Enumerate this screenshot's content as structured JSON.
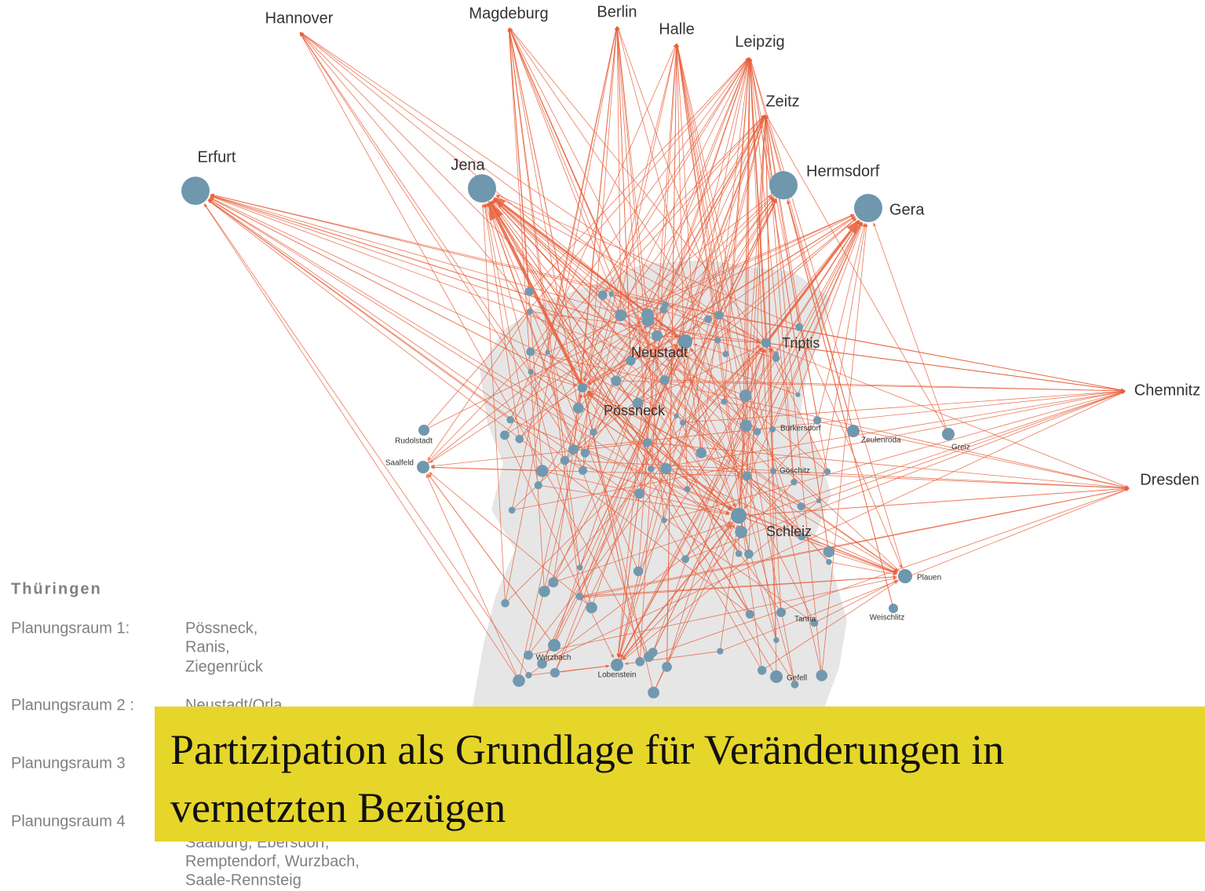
{
  "title": "Partizipation als Grundlage für Veränderungen in vernetzten Bezügen",
  "nodes": [
    {
      "label": "Hannover"
    },
    {
      "label": "Magdeburg"
    },
    {
      "label": "Berlin"
    },
    {
      "label": "Halle"
    },
    {
      "label": "Leipzig"
    },
    {
      "label": "Zeitz"
    },
    {
      "label": "Chemnitz"
    },
    {
      "label": "Dresden"
    },
    {
      "label": "Erfurt"
    },
    {
      "label": "Jena"
    },
    {
      "label": "Hermsdorf"
    },
    {
      "label": "Gera"
    },
    {
      "label": "Triptis"
    },
    {
      "label": "Neustadt"
    },
    {
      "label": "Pössneck"
    },
    {
      "label": "Schleiz"
    },
    {
      "label": "Zeulenroda"
    },
    {
      "label": "Greiz"
    },
    {
      "label": "Plauen"
    },
    {
      "label": "Saalfeld"
    },
    {
      "label": "Rudolstadt"
    },
    {
      "label": "Gefell"
    },
    {
      "label": "Wurzbach"
    },
    {
      "label": "Lobenstein"
    },
    {
      "label": "Tanna"
    },
    {
      "label": "Weischlitz"
    },
    {
      "label": "Burkersdorf"
    },
    {
      "label": "Göschitz"
    }
  ],
  "legend": {
    "heading": "Thüringen",
    "entries": [
      {
        "name": "Planungsraum 1:",
        "places": [
          "Pössneck,",
          "Ranis,",
          "Ziegenrück"
        ]
      },
      {
        "name": "Planungsraum 2 :",
        "places": [
          "Neustadt/Orla"
        ]
      },
      {
        "name": "Planungsraum 3"
      },
      {
        "name": "Planungsraum 4",
        "places": [
          "Saalburg, Ebersdorf,",
          "Remptendorf, Wurzbach,",
          "Saale-Rennsteig"
        ]
      }
    ]
  }
}
